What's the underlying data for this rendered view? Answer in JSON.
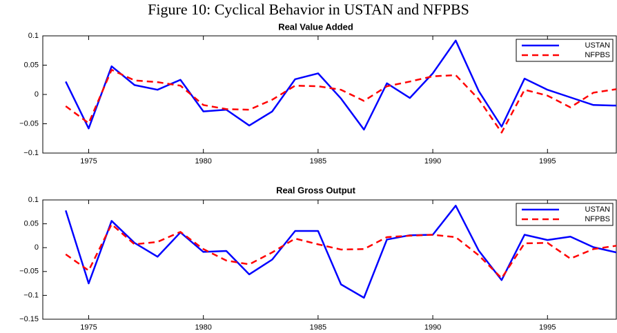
{
  "title": "Figure 10: Cyclical Behavior in USTAN and NFPBS",
  "chart_data": [
    {
      "type": "line",
      "title": "Real Value Added",
      "x": [
        1974,
        1975,
        1976,
        1977,
        1978,
        1979,
        1980,
        1981,
        1982,
        1983,
        1984,
        1985,
        1986,
        1987,
        1988,
        1989,
        1990,
        1991,
        1992,
        1993,
        1994,
        1995,
        1996,
        1997,
        1998
      ],
      "series": [
        {
          "name": "USTAN",
          "color": "#0000ff",
          "dash": false,
          "values": [
            0.022,
            -0.058,
            0.048,
            0.016,
            0.008,
            0.025,
            -0.029,
            -0.026,
            -0.053,
            -0.029,
            0.026,
            0.036,
            -0.007,
            -0.06,
            0.019,
            -0.006,
            0.036,
            0.092,
            0.006,
            -0.055,
            0.027,
            0.008,
            -0.005,
            -0.018,
            -0.019
          ]
        },
        {
          "name": "NFPBS",
          "color": "#ff0000",
          "dash": true,
          "values": [
            -0.02,
            -0.049,
            0.042,
            0.024,
            0.021,
            0.015,
            -0.018,
            -0.025,
            -0.026,
            -0.009,
            0.015,
            0.014,
            0.008,
            -0.011,
            0.014,
            0.022,
            0.031,
            0.033,
            -0.008,
            -0.065,
            0.008,
            -0.002,
            -0.022,
            0.003,
            0.009
          ]
        }
      ],
      "xlim": [
        1973,
        1998
      ],
      "xticks": [
        1975,
        1980,
        1985,
        1990,
        1995
      ],
      "ylim": [
        -0.1,
        0.1
      ],
      "yticks": [
        {
          "value": -0.1,
          "label": "−0.1"
        },
        {
          "value": -0.05,
          "label": "−0.05"
        },
        0,
        0.05,
        0.1
      ],
      "legend": "upper right",
      "grid": false
    },
    {
      "type": "line",
      "title": "Real Gross Output",
      "x": [
        1974,
        1975,
        1976,
        1977,
        1978,
        1979,
        1980,
        1981,
        1982,
        1983,
        1984,
        1985,
        1986,
        1987,
        1988,
        1989,
        1990,
        1991,
        1992,
        1993,
        1994,
        1995,
        1996,
        1997,
        1998
      ],
      "series": [
        {
          "name": "USTAN",
          "color": "#0000ff",
          "dash": false,
          "values": [
            0.078,
            -0.075,
            0.056,
            0.01,
            -0.019,
            0.032,
            -0.009,
            -0.007,
            -0.056,
            -0.025,
            0.035,
            0.035,
            -0.077,
            -0.105,
            0.017,
            0.026,
            0.027,
            0.088,
            -0.006,
            -0.068,
            0.027,
            0.016,
            0.023,
            0.001,
            -0.01
          ]
        },
        {
          "name": "NFPBS",
          "color": "#ff0000",
          "dash": true,
          "values": [
            -0.014,
            -0.048,
            0.049,
            0.007,
            0.012,
            0.033,
            -0.003,
            -0.027,
            -0.035,
            -0.01,
            0.019,
            0.007,
            -0.004,
            -0.003,
            0.022,
            0.025,
            0.027,
            0.022,
            -0.016,
            -0.064,
            0.009,
            0.01,
            -0.023,
            -0.003,
            0.004
          ]
        }
      ],
      "xlim": [
        1973,
        1998
      ],
      "xticks": [
        1975,
        1980,
        1985,
        1990,
        1995
      ],
      "ylim": [
        -0.15,
        0.1
      ],
      "yticks": [
        {
          "value": -0.15,
          "label": "−0.15"
        },
        {
          "value": -0.1,
          "label": "−0.1"
        },
        {
          "value": -0.05,
          "label": "−0.05"
        },
        0,
        0.05,
        0.1
      ],
      "legend": "upper right",
      "grid": false
    }
  ]
}
